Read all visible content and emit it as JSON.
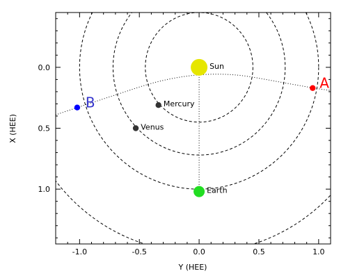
{
  "chart_data": {
    "type": "scatter",
    "title": "",
    "xlabel": "Y (HEE)",
    "ylabel": "X (HEE)",
    "xlim": [
      -1.2,
      1.1
    ],
    "ylim": [
      -0.45,
      1.45
    ],
    "y_inverted": true,
    "x_ticks": [
      -1.0,
      -0.5,
      0.0,
      0.5,
      1.0
    ],
    "x_tick_labels": [
      "-1.0",
      "-0.5",
      "0.0",
      "0.5",
      "1.0"
    ],
    "y_ticks": [
      0.0,
      0.5,
      1.0
    ],
    "y_tick_labels": [
      "0.0",
      "0.5",
      "1.0"
    ],
    "grid": false,
    "circles": [
      {
        "center": [
          0.0,
          0.0
        ],
        "radius": 0.45,
        "style": "dashed"
      },
      {
        "center": [
          0.0,
          0.0
        ],
        "radius": 0.72,
        "style": "dashed"
      },
      {
        "center": [
          0.0,
          0.0
        ],
        "radius": 1.0,
        "style": "dashed"
      },
      {
        "center": [
          0.0,
          0.0
        ],
        "radius": 1.52,
        "style": "dashed"
      }
    ],
    "points": [
      {
        "label": "Sun",
        "x": 0.0,
        "y": 0.0,
        "color": "#e6e600",
        "label_color": "#e6e600",
        "size": "large"
      },
      {
        "label": "Earth",
        "x": 0.0,
        "y": 1.02,
        "color": "#22dd22",
        "label_color": "#22dd22",
        "size": "medium"
      },
      {
        "label": "Mercury",
        "x": -0.34,
        "y": 0.31,
        "color": "#333333",
        "label_color": "#000000",
        "size": "small"
      },
      {
        "label": "Venus",
        "x": -0.53,
        "y": 0.5,
        "color": "#333333",
        "label_color": "#000000",
        "size": "small"
      },
      {
        "label": "A",
        "x": 0.95,
        "y": 0.17,
        "color": "#ff0000",
        "label_color": "#ff0000",
        "size": "small",
        "label_size": "large"
      },
      {
        "label": "B",
        "x": -1.02,
        "y": 0.33,
        "color": "#0000ff",
        "label_color": "#3333cc",
        "size": "small",
        "label_size": "large"
      }
    ],
    "dotted_lines": [
      {
        "from": [
          0.0,
          0.0
        ],
        "to": [
          0.0,
          1.02
        ]
      }
    ],
    "dotted_curve": {
      "through": [
        [
          -1.2,
          0.39
        ],
        [
          -1.02,
          0.33
        ],
        [
          0.0,
          0.0
        ],
        [
          0.95,
          0.17
        ],
        [
          1.1,
          0.19
        ]
      ]
    }
  }
}
